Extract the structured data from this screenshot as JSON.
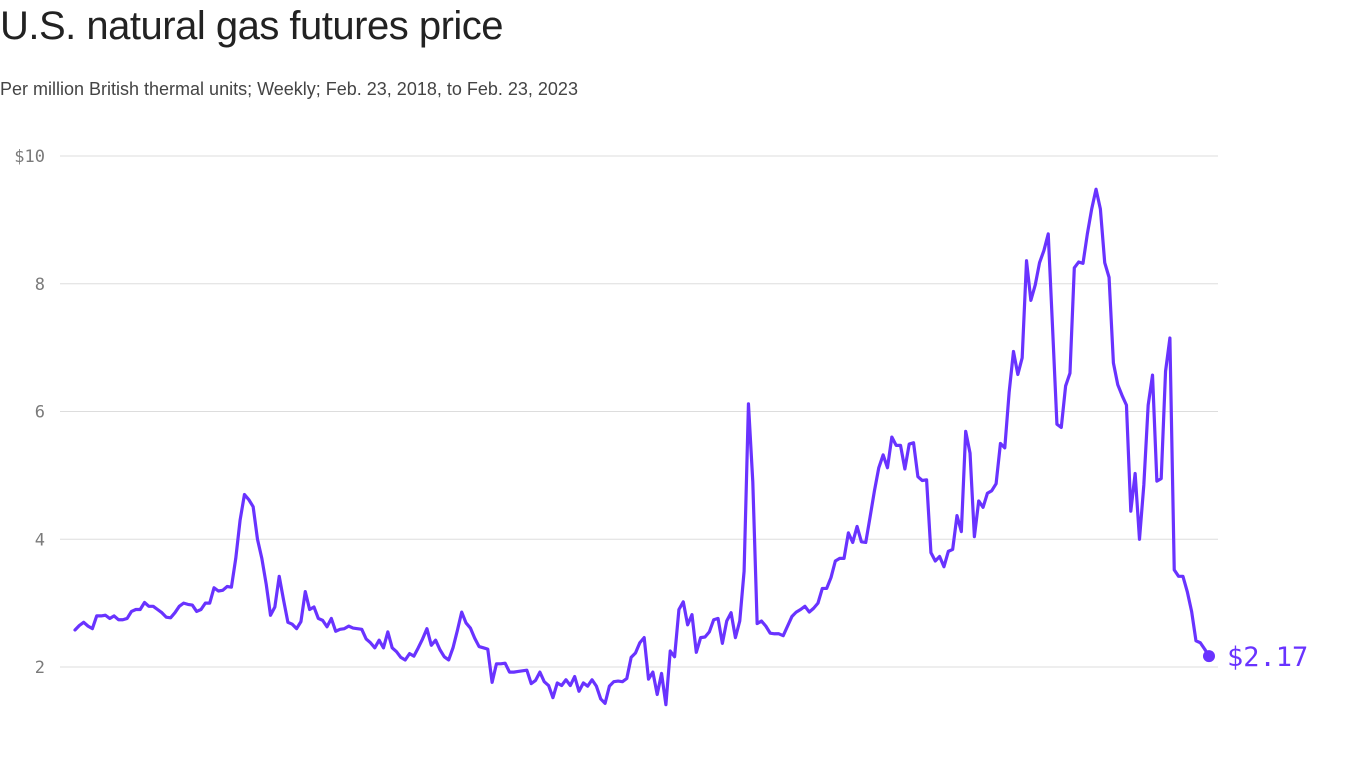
{
  "title": "U.S. natural gas futures price",
  "subtitle": "Per million British thermal units; Weekly; Feb. 23, 2018, to Feb. 23, 2023",
  "colors": {
    "line": "#6933ff",
    "grid": "#dddddd",
    "tick": "#7a7a7a"
  },
  "chart_data": {
    "type": "line",
    "title": "U.S. natural gas futures price",
    "subtitle": "Per million British thermal units; Weekly; Feb. 23, 2018, to Feb. 23, 2023",
    "xlabel": "",
    "ylabel": "",
    "x_range": [
      "2018-02-23",
      "2023-02-23"
    ],
    "ylim": [
      1.3,
      10
    ],
    "yticks": [
      2,
      4,
      6,
      8,
      10
    ],
    "ytick_labels": [
      "2",
      "4",
      "6",
      "8",
      "$10"
    ],
    "grid": true,
    "end_label": "$2.17",
    "series": [
      {
        "frequency": "weekly",
        "values": [
          2.58,
          2.65,
          2.7,
          2.64,
          2.6,
          2.8,
          2.8,
          2.81,
          2.76,
          2.8,
          2.74,
          2.74,
          2.76,
          2.87,
          2.9,
          2.9,
          3.01,
          2.95,
          2.95,
          2.9,
          2.85,
          2.78,
          2.77,
          2.85,
          2.95,
          3.0,
          2.98,
          2.97,
          2.87,
          2.9,
          3.0,
          3.0,
          3.24,
          3.19,
          3.2,
          3.26,
          3.25,
          3.7,
          4.3,
          4.7,
          4.62,
          4.51,
          4.0,
          3.7,
          3.3,
          2.81,
          2.94,
          3.42,
          3.05,
          2.7,
          2.67,
          2.6,
          2.71,
          3.18,
          2.9,
          2.94,
          2.76,
          2.73,
          2.63,
          2.76,
          2.56,
          2.59,
          2.6,
          2.64,
          2.61,
          2.6,
          2.59,
          2.44,
          2.38,
          2.3,
          2.42,
          2.3,
          2.55,
          2.3,
          2.24,
          2.15,
          2.11,
          2.21,
          2.17,
          2.3,
          2.44,
          2.6,
          2.34,
          2.42,
          2.27,
          2.16,
          2.11,
          2.3,
          2.57,
          2.86,
          2.69,
          2.61,
          2.45,
          2.32,
          2.3,
          2.28,
          1.76,
          2.05,
          2.05,
          2.06,
          1.92,
          1.92,
          1.93,
          1.94,
          1.95,
          1.74,
          1.79,
          1.92,
          1.77,
          1.71,
          1.52,
          1.75,
          1.71,
          1.8,
          1.71,
          1.85,
          1.62,
          1.75,
          1.7,
          1.8,
          1.7,
          1.5,
          1.43,
          1.7,
          1.77,
          1.78,
          1.77,
          1.82,
          2.15,
          2.22,
          2.38,
          2.46,
          1.81,
          1.92,
          1.57,
          1.9,
          1.41,
          2.25,
          2.16,
          2.9,
          3.02,
          2.66,
          2.82,
          2.23,
          2.46,
          2.47,
          2.55,
          2.74,
          2.76,
          2.37,
          2.72,
          2.85,
          2.46,
          2.72,
          3.5,
          6.12,
          4.9,
          2.68,
          2.72,
          2.64,
          2.53,
          2.52,
          2.52,
          2.49,
          2.64,
          2.79,
          2.86,
          2.9,
          2.95,
          2.86,
          2.92,
          3.0,
          3.23,
          3.23,
          3.4,
          3.66,
          3.7,
          3.7,
          4.1,
          3.95,
          4.2,
          3.96,
          3.95,
          4.35,
          4.76,
          5.12,
          5.32,
          5.12,
          5.6,
          5.47,
          5.47,
          5.1,
          5.49,
          5.51,
          4.98,
          4.92,
          4.93,
          3.79,
          3.66,
          3.73,
          3.57,
          3.81,
          3.84,
          4.37,
          4.12,
          5.69,
          5.35,
          4.04,
          4.6,
          4.5,
          4.72,
          4.76,
          4.87,
          5.5,
          5.43,
          6.3,
          6.94,
          6.58,
          6.84,
          8.36,
          7.74,
          7.98,
          8.33,
          8.52,
          8.78,
          7.3,
          5.8,
          5.75,
          6.4,
          6.6,
          8.25,
          8.34,
          8.32,
          8.78,
          9.17,
          9.48,
          9.17,
          8.33,
          8.1,
          6.76,
          6.42,
          6.25,
          6.1,
          4.44,
          5.03,
          4.0,
          4.85,
          6.1,
          6.57,
          4.91,
          4.95,
          6.63,
          7.15,
          3.52,
          3.42,
          3.42,
          3.18,
          2.87,
          2.41,
          2.38,
          2.28,
          2.17
        ]
      }
    ]
  }
}
